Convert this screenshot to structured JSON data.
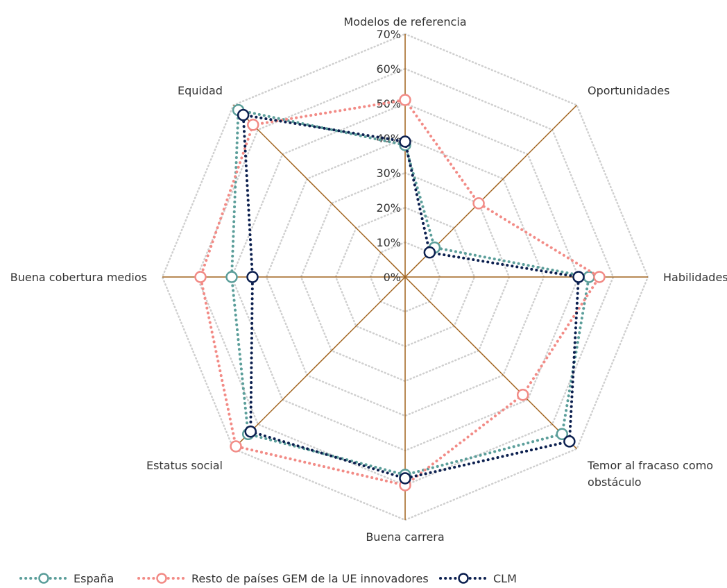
{
  "chart_data": {
    "type": "radar",
    "title": "",
    "axes": [
      [
        "Modelos de referencia"
      ],
      [
        "Oportunidades"
      ],
      [
        "Habilidades"
      ],
      [
        "Temor al fracaso como",
        "obstáculo"
      ],
      [
        "Buena carrera"
      ],
      [
        "Estatus social"
      ],
      [
        "Buena cobertura medios"
      ],
      [
        "Equidad"
      ]
    ],
    "tick_labels": [
      "0%",
      "10%",
      "20%",
      "30%",
      "40%",
      "50%",
      "60%",
      "70%"
    ],
    "rlim": [
      0,
      70
    ],
    "grid": true,
    "legend_position": "bottom",
    "series": [
      {
        "name": "España",
        "color": "#5b9e9a",
        "values": [
          38,
          12,
          53,
          64,
          57,
          64,
          50,
          68
        ]
      },
      {
        "name": "Resto de países GEM de la UE innovadores",
        "color": "#f28b86",
        "values": [
          51,
          30,
          56,
          48,
          60,
          69,
          59,
          62
        ]
      },
      {
        "name": "CLM",
        "color": "#0b1f4f",
        "values": [
          39,
          10,
          50,
          67,
          58,
          63,
          44,
          66
        ]
      }
    ],
    "colors": {
      "axis": "#a0621c",
      "grid": "#cfcfcf"
    }
  }
}
